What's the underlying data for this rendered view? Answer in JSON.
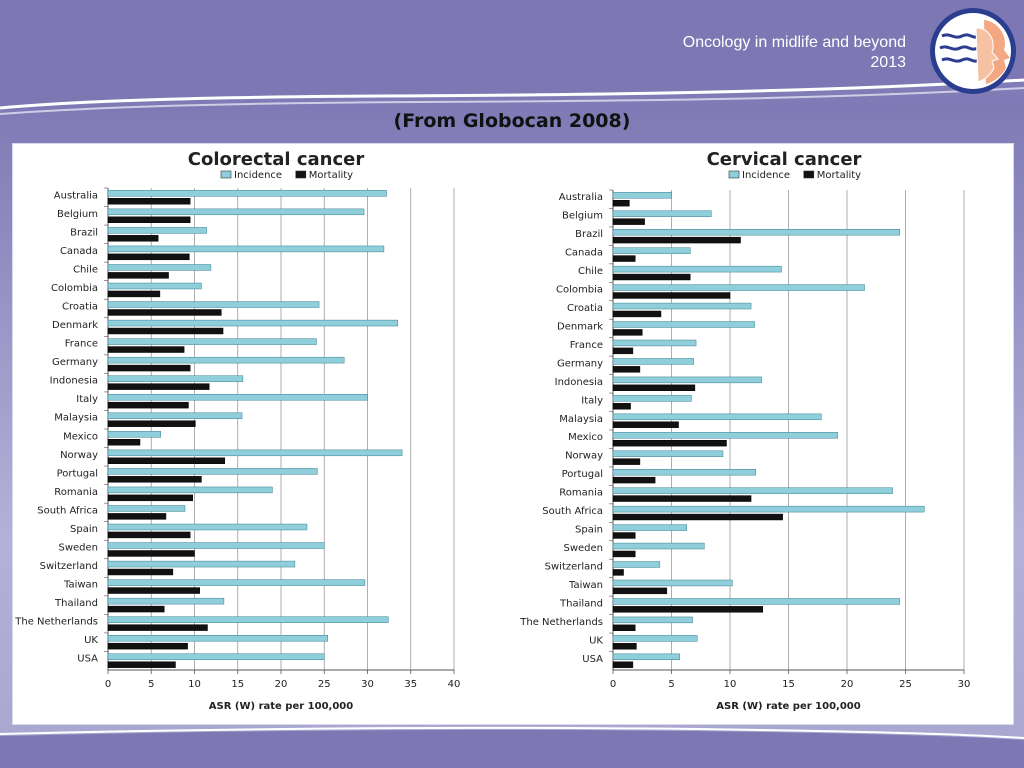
{
  "header": {
    "line1": "Oncology in midlife and beyond",
    "line2": "2013"
  },
  "source_title": "(From Globocan 2008)",
  "chart_data": [
    {
      "type": "bar",
      "orientation": "horizontal",
      "title": "Colorectal cancer",
      "xlabel": "ASR (W) rate per 100,000",
      "ylabel": "",
      "xlim": [
        0,
        40
      ],
      "xticks": [
        0,
        5,
        10,
        15,
        20,
        25,
        30,
        35,
        40
      ],
      "grid": "vertical",
      "legend_position": "top",
      "categories": [
        "Australia",
        "Belgium",
        "Brazil",
        "Canada",
        "Chile",
        "Colombia",
        "Croatia",
        "Denmark",
        "France",
        "Germany",
        "Indonesia",
        "Italy",
        "Malaysia",
        "Mexico",
        "Norway",
        "Portugal",
        "Romania",
        "South Africa",
        "Spain",
        "Sweden",
        "Switzerland",
        "Taiwan",
        "Thailand",
        "The Netherlands",
        "UK",
        "USA"
      ],
      "series": [
        {
          "name": "Incidence",
          "color": "#8fcfdc",
          "values": [
            32.2,
            29.6,
            11.4,
            31.9,
            11.9,
            10.8,
            24.4,
            33.5,
            24.1,
            27.3,
            15.6,
            30.0,
            15.5,
            6.1,
            34.0,
            24.2,
            19.0,
            8.9,
            23.0,
            25.0,
            21.6,
            29.7,
            13.4,
            32.4,
            25.4,
            25.0
          ]
        },
        {
          "name": "Mortality",
          "color": "#111111",
          "values": [
            9.5,
            9.5,
            5.8,
            9.4,
            7.0,
            6.0,
            13.1,
            13.3,
            8.8,
            9.5,
            11.7,
            9.3,
            10.1,
            3.7,
            13.5,
            10.8,
            9.8,
            6.7,
            9.5,
            10.0,
            7.5,
            10.6,
            6.5,
            11.5,
            9.2,
            7.8
          ]
        }
      ]
    },
    {
      "type": "bar",
      "orientation": "horizontal",
      "title": "Cervical cancer",
      "xlabel": "ASR (W) rate per 100,000",
      "ylabel": "",
      "xlim": [
        0,
        30
      ],
      "xticks": [
        0,
        5,
        10,
        15,
        20,
        25,
        30
      ],
      "grid": "vertical",
      "legend_position": "top",
      "categories": [
        "Australia",
        "Belgium",
        "Brazil",
        "Canada",
        "Chile",
        "Colombia",
        "Croatia",
        "Denmark",
        "France",
        "Germany",
        "Indonesia",
        "Italy",
        "Malaysia",
        "Mexico",
        "Norway",
        "Portugal",
        "Romania",
        "South Africa",
        "Spain",
        "Sweden",
        "Switzerland",
        "Taiwan",
        "Thailand",
        "The Netherlands",
        "UK",
        "USA"
      ],
      "series": [
        {
          "name": "Incidence",
          "color": "#8fcfdc",
          "values": [
            5.0,
            8.4,
            24.5,
            6.6,
            14.4,
            21.5,
            11.8,
            12.1,
            7.1,
            6.9,
            12.7,
            6.7,
            17.8,
            19.2,
            9.4,
            12.2,
            23.9,
            26.6,
            6.3,
            7.8,
            4.0,
            10.2,
            24.5,
            6.8,
            7.2,
            5.7
          ]
        },
        {
          "name": "Mortality",
          "color": "#111111",
          "values": [
            1.4,
            2.7,
            10.9,
            1.9,
            6.6,
            10.0,
            4.1,
            2.5,
            1.7,
            2.3,
            7.0,
            1.5,
            5.6,
            9.7,
            2.3,
            3.6,
            11.8,
            14.5,
            1.9,
            1.9,
            0.9,
            4.6,
            12.8,
            1.9,
            2.0,
            1.7
          ]
        }
      ]
    }
  ]
}
